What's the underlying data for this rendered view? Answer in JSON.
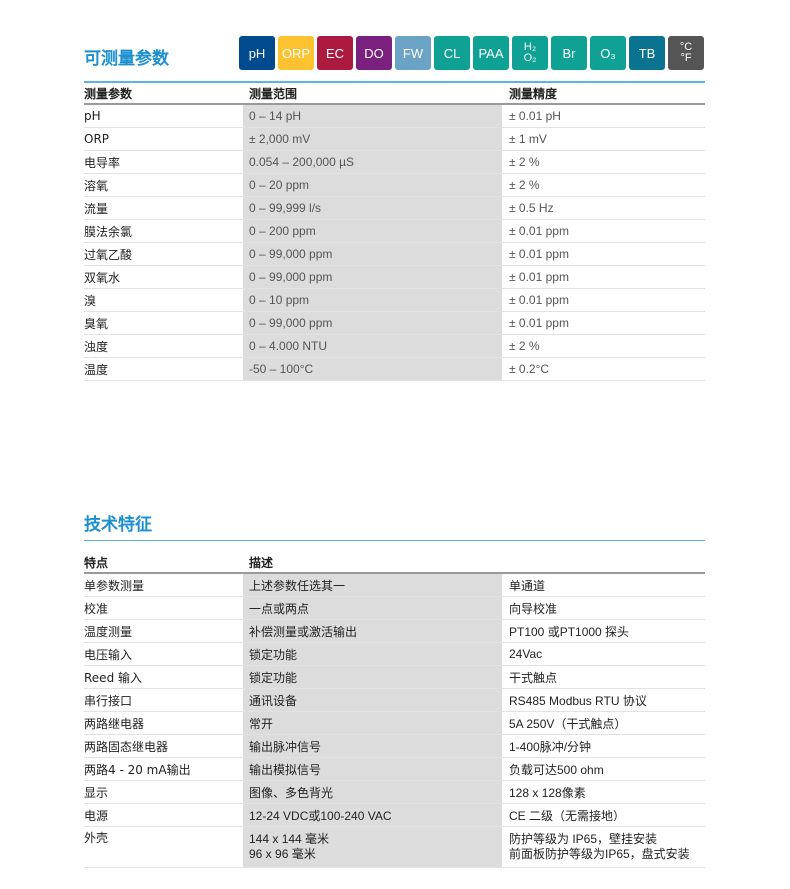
{
  "section1": {
    "title": "可测量参数",
    "badges": [
      {
        "label": "pH",
        "color": "#004b8d"
      },
      {
        "label": "ORP",
        "color": "#fdc22f"
      },
      {
        "label": "EC",
        "color": "#ac1a3f"
      },
      {
        "label": "DO",
        "color": "#7a2180"
      },
      {
        "label": "FW",
        "color": "#6ba3c4"
      },
      {
        "label": "CL",
        "color": "#0fa194"
      },
      {
        "label": "PAA",
        "color": "#0fa194"
      },
      {
        "label": "H2O2",
        "top": "H₂",
        "bottom": "O₂",
        "color": "#0fa194"
      },
      {
        "label": "Br",
        "color": "#0fa194"
      },
      {
        "label": "O₃",
        "color": "#0fa194"
      },
      {
        "label": "TB",
        "color": "#0a7490"
      },
      {
        "label": "°C °F",
        "top": "°C",
        "bottom": "°F",
        "color": "#555555"
      }
    ],
    "headers": [
      "测量参数",
      "测量范围",
      "测量精度"
    ],
    "rows": [
      [
        "pH",
        "0 – 14 pH",
        "± 0.01 pH"
      ],
      [
        "ORP",
        "± 2,000 mV",
        "± 1 mV"
      ],
      [
        "电导率",
        "0.054 – 200,000 µS",
        "± 2 %"
      ],
      [
        "溶氧",
        "0 – 20 ppm",
        "± 2 %"
      ],
      [
        "流量",
        "0 – 99,999 l/s",
        "± 0.5 Hz"
      ],
      [
        "膜法余氯",
        "0 – 200 ppm",
        "± 0.01 ppm"
      ],
      [
        "过氧乙酸",
        "0 – 99,000 ppm",
        "± 0.01 ppm"
      ],
      [
        "双氧水",
        "0 – 99,000 ppm",
        "± 0.01 ppm"
      ],
      [
        "溴",
        "0 – 10 ppm",
        "± 0.01 ppm"
      ],
      [
        "臭氧",
        "0 – 99,000 ppm",
        "± 0.01 ppm"
      ],
      [
        "浊度",
        "0 – 4.000 NTU",
        "± 2 %"
      ],
      [
        "温度",
        "-50 – 100°C",
        "± 0.2°C"
      ]
    ]
  },
  "section2": {
    "title": "技术特征",
    "headers": [
      "特点",
      "描述",
      ""
    ],
    "rows": [
      [
        "单参数测量",
        "上述参数任选其一",
        "单通道"
      ],
      [
        "校准",
        "一点或两点",
        "向导校准"
      ],
      [
        "温度测量",
        "补偿测量或激活输出",
        "PT100 或PT1000 探头"
      ],
      [
        "电压输入",
        "锁定功能",
        "24Vac"
      ],
      [
        "Reed 输入",
        "锁定功能",
        "干式触点"
      ],
      [
        "串行接口",
        "通讯设备",
        "RS485 Modbus RTU 协议"
      ],
      [
        "两路继电器",
        "常开",
        "5A 250V（干式触点）"
      ],
      [
        "两路固态继电器",
        "输出脉冲信号",
        "1-400脉冲/分钟"
      ],
      [
        "两路4 - 20 mA输出",
        "输出模拟信号",
        "负载可达500 ohm"
      ],
      [
        "显示",
        "图像、多色背光",
        "128 x 128像素"
      ],
      [
        "电源",
        "12-24 VDC或100-240 VAC",
        "CE 二级（无需接地）"
      ]
    ],
    "last": {
      "c1": "外壳",
      "c2a": "144 x 144 毫米",
      "c2b": "96 x 96 毫米",
      "c3a": "防护等级为 IP65，壁挂安装",
      "c3b": "前面板防护等级为IP65，盘式安装"
    }
  }
}
